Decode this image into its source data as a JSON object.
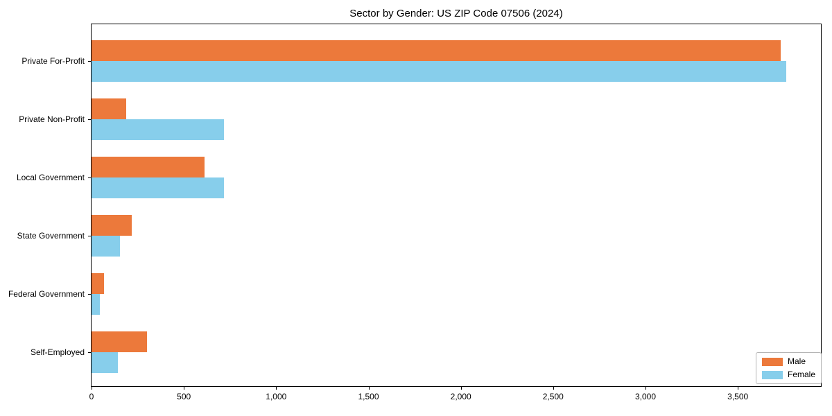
{
  "figure": {
    "title": "Sector by Gender: US ZIP Code 07506 (2024)"
  },
  "chart_data": {
    "type": "bar",
    "orientation": "horizontal",
    "title": "Sector by Gender: US ZIP Code 07506 (2024)",
    "categories": [
      "Private For-Profit",
      "Private Non-Profit",
      "Local Government",
      "State Government",
      "Federal Government",
      "Self-Employed"
    ],
    "series": [
      {
        "name": "Male",
        "color": "#EC793B",
        "values": [
          3731,
          187,
          613,
          217,
          67,
          299
        ]
      },
      {
        "name": "Female",
        "color": "#87CEEB",
        "values": [
          3762,
          717,
          717,
          152,
          46,
          142
        ]
      }
    ],
    "xlim": [
      0,
      3950
    ],
    "x_ticks": [
      0,
      500,
      1000,
      1500,
      2000,
      2500,
      3000,
      3500
    ],
    "x_tick_labels": [
      "0",
      "500",
      "1,000",
      "1,500",
      "2,000",
      "2,500",
      "3,000",
      "3,500"
    ],
    "xlabel": "",
    "ylabel": "",
    "grid": false,
    "legend": {
      "position": "lower right",
      "entries": [
        "Male",
        "Female"
      ]
    },
    "axis_color": "#000000",
    "background": "#ffffff"
  }
}
